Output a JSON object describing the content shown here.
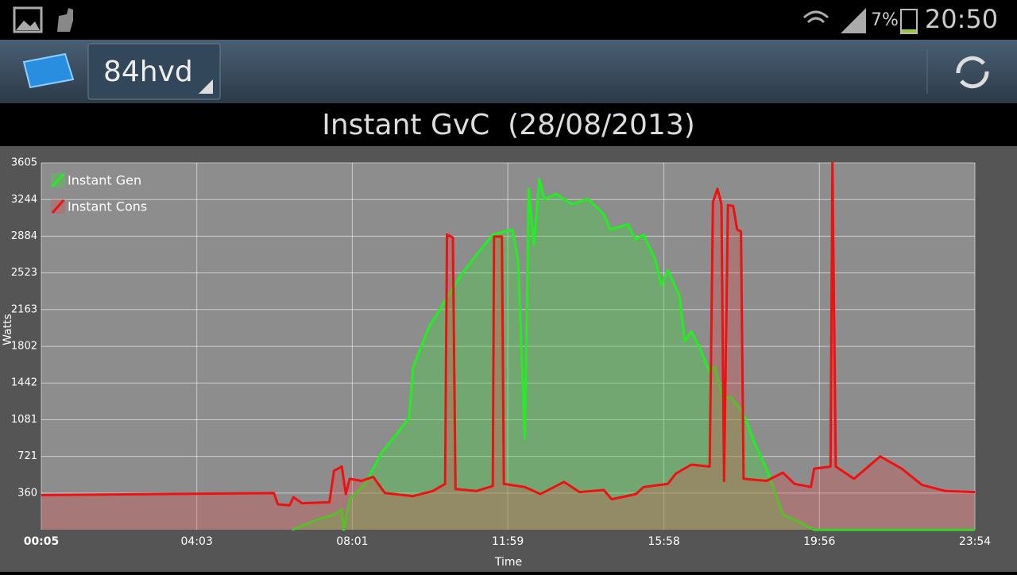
{
  "status_bar": {
    "battery": "7%",
    "time": "20:50"
  },
  "app_bar": {
    "account": "84hvd"
  },
  "chart_data": {
    "type": "line",
    "title": "Instant GvC  (28/08/2013)",
    "x_label": "Time",
    "y_label": "Watts",
    "xlim": [
      "00:05",
      "23:54"
    ],
    "xticks": [
      "00:05",
      "04:03",
      "08:01",
      "11:59",
      "15:58",
      "19:56",
      "23:54"
    ],
    "ylim": [
      0,
      3605
    ],
    "yticks": [
      360,
      721,
      1081,
      1442,
      1802,
      2163,
      2523,
      2884,
      3244,
      3605
    ],
    "grid": true,
    "legend": "top-left",
    "series": [
      {
        "name": "Instant Gen",
        "color": "#22ee22",
        "fill": "rgba(70,210,70,0.38)",
        "x": [
          "06:29",
          "07:08",
          "07:33",
          "07:45",
          "07:48",
          "07:57",
          "08:21",
          "08:45",
          "09:10",
          "09:28",
          "09:34",
          "09:59",
          "10:23",
          "10:47",
          "11:11",
          "11:36",
          "12:06",
          "12:15",
          "12:25",
          "12:31",
          "12:39",
          "12:47",
          "12:55",
          "13:13",
          "13:37",
          "14:02",
          "14:26",
          "14:36",
          "15:03",
          "15:15",
          "15:27",
          "15:45",
          "15:54",
          "16:04",
          "16:22",
          "16:30",
          "16:40",
          "16:52",
          "17:08",
          "17:16",
          "17:28",
          "17:41",
          "17:59",
          "18:17",
          "18:35",
          "19:00",
          "19:18",
          "19:48",
          "23:54"
        ],
        "values": [
          0,
          100,
          150,
          200,
          0,
          300,
          450,
          750,
          950,
          1100,
          1600,
          2000,
          2250,
          2500,
          2700,
          2900,
          2950,
          2650,
          900,
          3350,
          2800,
          3450,
          3250,
          3300,
          3200,
          3250,
          3100,
          2950,
          3000,
          2850,
          2900,
          2650,
          2400,
          2550,
          2300,
          1850,
          1950,
          1800,
          1550,
          1600,
          1300,
          1300,
          1150,
          850,
          600,
          150,
          100,
          0,
          0
        ]
      },
      {
        "name": "Instant Cons",
        "color": "#ee1111",
        "fill": "rgba(235,70,70,0.28)",
        "x": [
          "00:05",
          "06:01",
          "06:07",
          "06:25",
          "06:31",
          "06:44",
          "07:26",
          "07:33",
          "07:45",
          "07:51",
          "07:57",
          "08:15",
          "08:33",
          "08:51",
          "09:34",
          "10:04",
          "10:23",
          "10:26",
          "10:35",
          "10:39",
          "11:11",
          "11:36",
          "11:38",
          "11:50",
          "11:53",
          "12:25",
          "12:49",
          "13:25",
          "13:49",
          "14:26",
          "14:38",
          "15:15",
          "15:27",
          "16:04",
          "16:16",
          "16:40",
          "17:08",
          "17:13",
          "17:20",
          "17:26",
          "17:30",
          "17:36",
          "17:44",
          "17:50",
          "17:56",
          "18:00",
          "18:35",
          "19:00",
          "19:18",
          "19:43",
          "19:48",
          "20:13",
          "20:16",
          "20:21",
          "20:49",
          "21:29",
          "22:02",
          "22:33",
          "23:09",
          "23:54"
        ],
        "values": [
          340,
          360,
          250,
          240,
          320,
          260,
          270,
          580,
          620,
          350,
          500,
          480,
          520,
          360,
          330,
          380,
          450,
          2900,
          2870,
          400,
          380,
          430,
          2880,
          2880,
          450,
          420,
          350,
          470,
          370,
          390,
          300,
          350,
          420,
          450,
          550,
          640,
          620,
          3220,
          3350,
          3200,
          480,
          3190,
          3180,
          2950,
          2930,
          500,
          480,
          560,
          450,
          420,
          600,
          620,
          3605,
          620,
          500,
          720,
          600,
          440,
          380,
          370
        ]
      }
    ]
  }
}
